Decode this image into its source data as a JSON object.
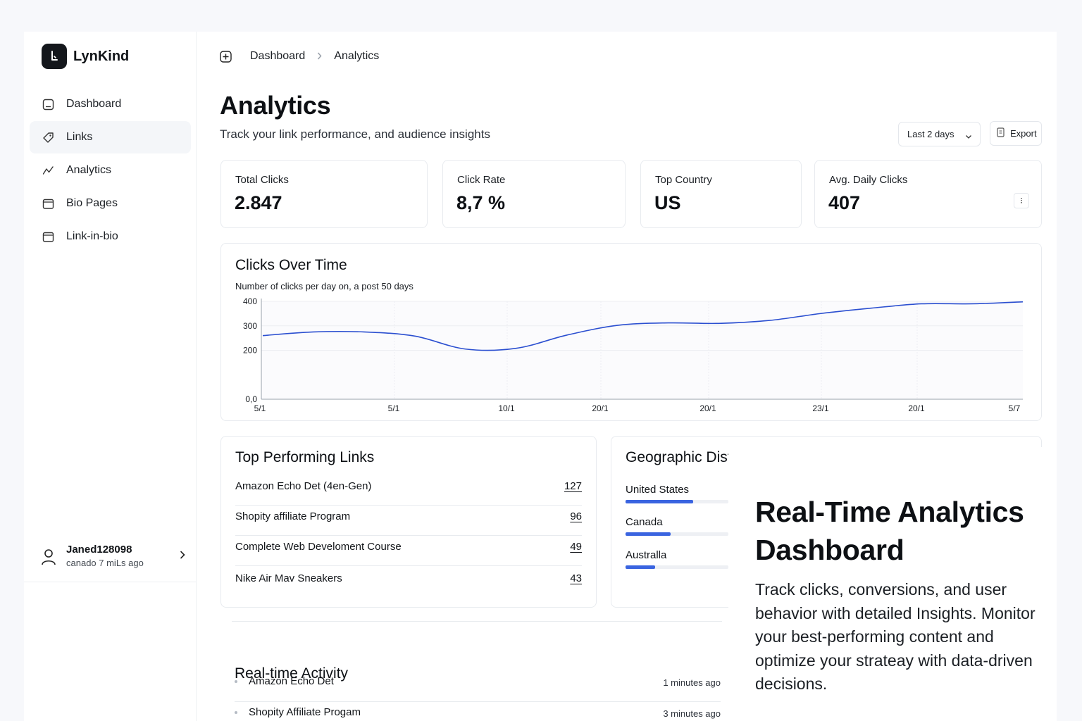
{
  "brand": {
    "name": "LynKind"
  },
  "sidebar": {
    "items": [
      {
        "label": "Dashboard",
        "icon": "dashboard-icon",
        "active": false
      },
      {
        "label": "Links",
        "icon": "tag-icon",
        "active": true
      },
      {
        "label": "Analytics",
        "icon": "trend-icon",
        "active": false
      },
      {
        "label": "Bio Pages",
        "icon": "folder-icon",
        "active": false
      },
      {
        "label": "Link-in-bio",
        "icon": "folder-icon",
        "active": false
      }
    ],
    "user": {
      "name": "Janed128098",
      "subtitle": "canado 7  miLs ago"
    }
  },
  "breadcrumb": {
    "root": "Dashboard",
    "current": "Analytics"
  },
  "header": {
    "title": "Analytics",
    "subtitle": "Track your link performance, and audience insights",
    "date_range": "Last 2 days",
    "export_label": "Export"
  },
  "stats": [
    {
      "label": "Total Clicks",
      "value": "2.847"
    },
    {
      "label": "Click Rate",
      "value": "8,7 %"
    },
    {
      "label": "Top Country",
      "value": "US"
    },
    {
      "label": "Avg. Daily Clicks",
      "value": "407",
      "menu": "⁝"
    }
  ],
  "chart_data": {
    "type": "line",
    "title": "Clicks Over Time",
    "subtitle": "Number of clicks per day on, a post 50 days",
    "y_ticks": [
      "400",
      "300",
      "200",
      "0,0"
    ],
    "x_ticks": [
      "5/1",
      "5/1",
      "10/1",
      "20/1",
      "20/1",
      "23/1",
      "20/1",
      "5/7"
    ],
    "ylim": [
      0,
      400
    ],
    "grid": true,
    "series": [
      {
        "values": [
          260,
          275,
          275,
          258,
          205,
          208,
          262,
          302,
          312,
          310,
          322,
          350,
          372,
          390,
          390,
          398
        ]
      }
    ],
    "color": "#2b4fd0"
  },
  "top_links": {
    "title": "Top Performing Links",
    "rows": [
      {
        "name": "Amazon Echo Det (4en-Gen)",
        "count": "127"
      },
      {
        "name": "Shopity affiliate Program",
        "count": "96"
      },
      {
        "name": "Complete Web Develoment Course",
        "count": "49"
      },
      {
        "name": "Nike Air Mav Sneakers",
        "count": "43"
      }
    ]
  },
  "geo": {
    "title": "Geographic Distrribution",
    "items": [
      {
        "name": "United States",
        "fraction": 0.66
      },
      {
        "name": "Canada",
        "fraction": 0.44
      },
      {
        "name": "Australla",
        "fraction": 0.29
      }
    ],
    "bar_color": "#3a64e0"
  },
  "promo": {
    "title": "Real-Time Analytics Dashboard",
    "body": "Track clicks, conversions, and user behavior with detailed Insights. Monitor your best-performing content and optimize your strateay with data-driven decisions."
  },
  "activity": {
    "title": "Real-time Activity",
    "rows": [
      {
        "name": "Amazon Echo Det",
        "time": "1 minutes ago"
      },
      {
        "name": "Shopity Affiliate Progam",
        "time": "3 minutes ago"
      }
    ]
  }
}
